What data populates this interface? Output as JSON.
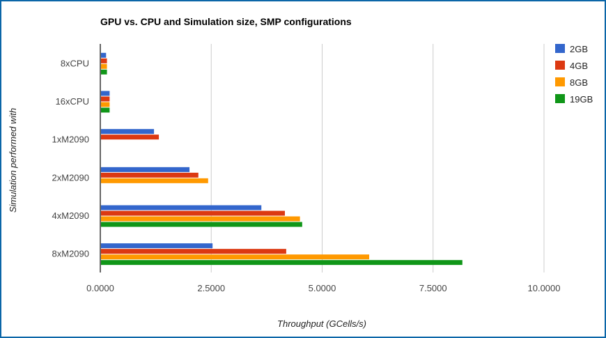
{
  "chart_data": {
    "type": "bar",
    "orientation": "horizontal",
    "title": "GPU vs. CPU and Simulation size, SMP configurations",
    "xlabel": "Throughput (GCells/s)",
    "ylabel": "Simulation performed with",
    "xlim": [
      0,
      10
    ],
    "xticks": [
      "0.0000",
      "2.5000",
      "5.0000",
      "7.5000",
      "10.0000"
    ],
    "xtick_values": [
      0,
      2.5,
      5,
      7.5,
      10
    ],
    "grid": true,
    "legend_position": "right",
    "categories": [
      "8xCPU",
      "16xCPU",
      "1xM2090",
      "2xM2090",
      "4xM2090",
      "8xM2090"
    ],
    "series": [
      {
        "name": "2GB",
        "color": "#3366cc",
        "values": [
          0.13,
          0.21,
          1.21,
          2.01,
          3.63,
          2.53
        ]
      },
      {
        "name": "4GB",
        "color": "#dc3912",
        "values": [
          0.15,
          0.21,
          1.32,
          2.21,
          4.16,
          4.19
        ]
      },
      {
        "name": "8GB",
        "color": "#ff9900",
        "values": [
          0.15,
          0.21,
          null,
          2.43,
          4.5,
          6.06
        ]
      },
      {
        "name": "19GB",
        "color": "#109618",
        "values": [
          0.15,
          0.21,
          null,
          null,
          4.55,
          8.16
        ]
      }
    ]
  }
}
